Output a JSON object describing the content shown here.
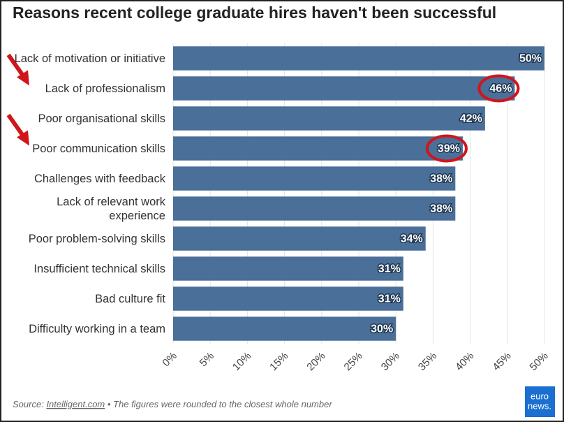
{
  "chart_data": {
    "type": "bar",
    "orientation": "horizontal",
    "title": "Reasons recent college graduate hires haven't been successful",
    "categories": [
      "Lack of motivation or initiative",
      "Lack of professionalism",
      "Poor organisational skills",
      "Poor communication skills",
      "Challenges with feedback",
      "Lack of relevant work experience",
      "Poor problem-solving skills",
      "Insufficient technical skills",
      "Bad culture fit",
      "Difficulty working in a team"
    ],
    "values": [
      50,
      46,
      42,
      39,
      38,
      38,
      34,
      31,
      31,
      30
    ],
    "value_labels": [
      "50%",
      "46%",
      "42%",
      "39%",
      "38%",
      "38%",
      "34%",
      "31%",
      "31%",
      "30%"
    ],
    "color": "#4a6f98",
    "xlim": [
      0,
      50
    ],
    "xticks": [
      {
        "value": 0,
        "label": "0%"
      },
      {
        "value": 5,
        "label": "5%"
      },
      {
        "value": 10,
        "label": "10%"
      },
      {
        "value": 15,
        "label": "15%"
      },
      {
        "value": 20,
        "label": "20%"
      },
      {
        "value": 25,
        "label": "25%"
      },
      {
        "value": 30,
        "label": "30%"
      },
      {
        "value": 35,
        "label": "35%"
      },
      {
        "value": 40,
        "label": "40%"
      },
      {
        "value": 45,
        "label": "45%"
      },
      {
        "value": 50,
        "label": "50%"
      }
    ],
    "grid": true,
    "source_prefix": "Source:",
    "source_link": "Intelligent.com",
    "source_note": "• The figures were rounded to the closest whole number",
    "logo": [
      "euro",
      "news."
    ]
  }
}
